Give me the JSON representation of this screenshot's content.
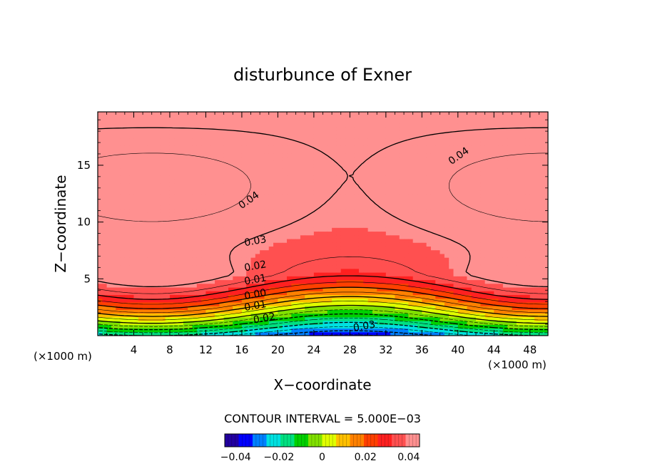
{
  "chart_data": {
    "type": "heatmap",
    "title": "disturbunce of Exner",
    "xlabel": "X−coordinate",
    "ylabel": "Z−coordinate",
    "x_unit": "(×1000 m)",
    "x_unit_right": "(×1000 m)",
    "xlim": [
      0,
      50
    ],
    "ylim": [
      0,
      19.7
    ],
    "x_ticks": [
      4,
      8,
      12,
      16,
      20,
      24,
      28,
      32,
      36,
      40,
      44,
      48
    ],
    "x_tick_labels": [
      "4",
      "8",
      "12",
      "16",
      "20",
      "24",
      "28",
      "32",
      "36",
      "40",
      "44",
      "48"
    ],
    "y_ticks": [
      5,
      10,
      15
    ],
    "y_tick_labels": [
      "5",
      "10",
      "15"
    ],
    "contour_interval_text": "CONTOUR INTERVAL = 5.000E−03",
    "value_range": [
      -0.045,
      0.045
    ],
    "contour_labels": [
      {
        "text": "0.04",
        "x": 16.8,
        "z": 11.9
      },
      {
        "text": "0.04",
        "x": 40.1,
        "z": 15.8
      },
      {
        "text": "0.03",
        "x": 17.5,
        "z": 8.3
      },
      {
        "text": "0.02",
        "x": 17.5,
        "z": 6.1
      },
      {
        "text": "0.01",
        "x": 17.5,
        "z": 4.9
      },
      {
        "text": "0.00",
        "x": 17.5,
        "z": 3.6
      },
      {
        "text": "0.01",
        "x": 17.5,
        "z": 2.6
      },
      {
        "text": "0.02",
        "x": 18.5,
        "z": 1.5
      },
      {
        "text": "0.03",
        "x": 29.6,
        "z": 0.8
      }
    ],
    "colorbar": {
      "tick_values": [
        -0.04,
        -0.02,
        0,
        0.02,
        0.04
      ],
      "tick_labels": [
        "−0.04",
        "−0.02",
        "0",
        "0.02",
        "0.04"
      ],
      "colors": [
        "#2200a0",
        "#0000ff",
        "#0080ff",
        "#00e0e0",
        "#00e080",
        "#00d000",
        "#80e000",
        "#e0ff00",
        "#ffc000",
        "#ff8000",
        "#ff4000",
        "#ff2020",
        "#ff5050",
        "#ff9090"
      ]
    }
  }
}
